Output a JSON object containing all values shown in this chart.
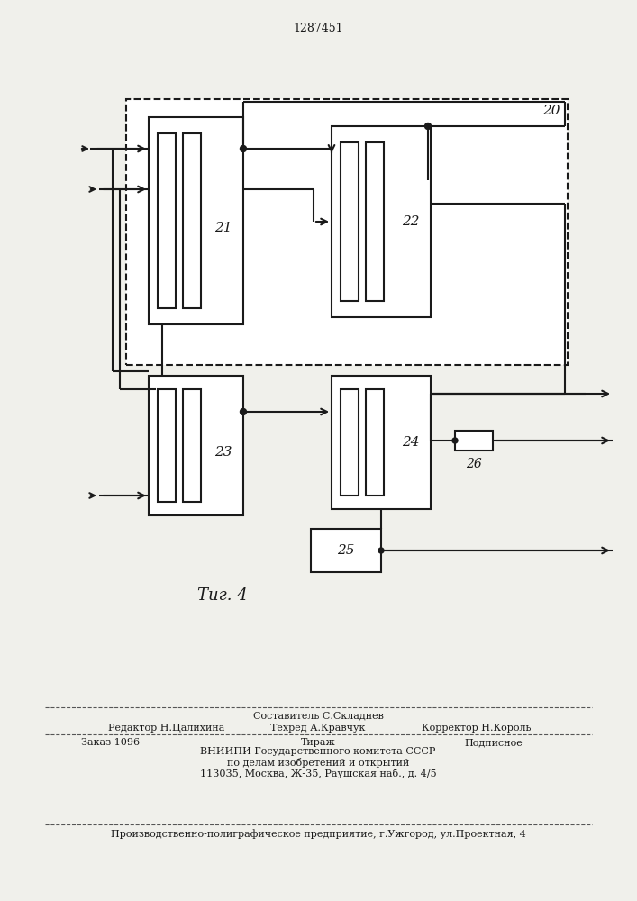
{
  "title": "1287451",
  "fig_label": "Τиг. 4",
  "bg_color": "#f0f0eb",
  "line_color": "#1a1a1a",
  "lw": 1.5,
  "page_width": 7.07,
  "page_height": 10.0,
  "footer_line1": "Составитель С.Складнев",
  "footer_line2a": "Редактор Н.Цалихина",
  "footer_line2b": "Техред А.Кравчук",
  "footer_line2c": "Корректор Н.Король",
  "footer_line3a": "Заказ 1096",
  "footer_line3b": "Тираж",
  "footer_line3c": "Подписное",
  "footer_line4": "ВНИИПИ Государственного комитета СССР",
  "footer_line5": "по делам изобретений и открытий",
  "footer_line6": "113035, Москва, Ж-35, Раушская наб., д. 4/5",
  "footer_line7": "Производственно-полиграфическое предприятие, г.Ужгород, ул.Проектная, 4"
}
